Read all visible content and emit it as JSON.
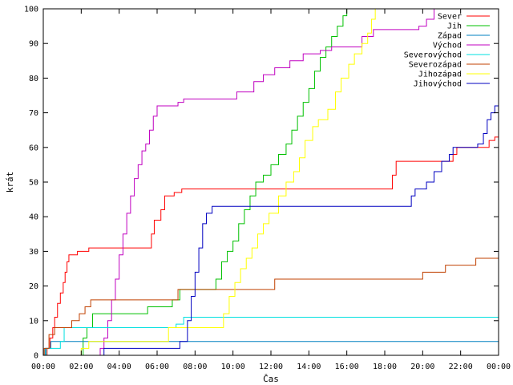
{
  "chart_data": {
    "type": "line",
    "xlabel": "Čas",
    "ylabel": "krát",
    "ylim": [
      0,
      100
    ],
    "xlim": [
      0,
      24
    ],
    "x_ticks": [
      {
        "x": 0,
        "label": "00:00"
      },
      {
        "x": 2,
        "label": "02:00"
      },
      {
        "x": 4,
        "label": "04:00"
      },
      {
        "x": 6,
        "label": "06:00"
      },
      {
        "x": 8,
        "label": "08:00"
      },
      {
        "x": 10,
        "label": "10:00"
      },
      {
        "x": 12,
        "label": "12:00"
      },
      {
        "x": 14,
        "label": "14:00"
      },
      {
        "x": 16,
        "label": "16:00"
      },
      {
        "x": 18,
        "label": "18:00"
      },
      {
        "x": 20,
        "label": "20:00"
      },
      {
        "x": 22,
        "label": "22:00"
      },
      {
        "x": 24,
        "label": "00:00"
      }
    ],
    "y_ticks": [
      0,
      10,
      20,
      30,
      40,
      50,
      60,
      70,
      80,
      90,
      100
    ],
    "grid": false,
    "legend_position": "top-right",
    "step": true,
    "series": [
      {
        "name": "Sever",
        "color": "#ff0000",
        "points": [
          [
            0,
            0
          ],
          [
            0.2,
            2
          ],
          [
            0.35,
            5
          ],
          [
            0.5,
            8
          ],
          [
            0.6,
            11
          ],
          [
            0.75,
            15
          ],
          [
            0.9,
            18
          ],
          [
            1.05,
            21
          ],
          [
            1.15,
            24
          ],
          [
            1.25,
            27
          ],
          [
            1.35,
            29
          ],
          [
            1.8,
            30
          ],
          [
            2.4,
            31
          ],
          [
            5.4,
            31
          ],
          [
            5.7,
            35
          ],
          [
            5.85,
            39
          ],
          [
            6.2,
            42
          ],
          [
            6.4,
            46
          ],
          [
            6.9,
            47
          ],
          [
            7.3,
            48
          ],
          [
            18.2,
            48
          ],
          [
            18.4,
            52
          ],
          [
            18.6,
            56
          ],
          [
            21.6,
            58
          ],
          [
            21.8,
            60
          ],
          [
            23.5,
            62
          ],
          [
            23.8,
            63
          ],
          [
            24,
            63
          ]
        ]
      },
      {
        "name": "Jih",
        "color": "#00c000",
        "points": [
          [
            0,
            0
          ],
          [
            1.9,
            0
          ],
          [
            2.1,
            5
          ],
          [
            2.3,
            8
          ],
          [
            2.6,
            12
          ],
          [
            4.5,
            12
          ],
          [
            5.5,
            14
          ],
          [
            6.8,
            16
          ],
          [
            7.2,
            19
          ],
          [
            8.9,
            19
          ],
          [
            9.1,
            22
          ],
          [
            9.4,
            27
          ],
          [
            9.7,
            30
          ],
          [
            10.0,
            33
          ],
          [
            10.3,
            38
          ],
          [
            10.6,
            42
          ],
          [
            10.9,
            46
          ],
          [
            11.2,
            50
          ],
          [
            11.6,
            52
          ],
          [
            12.0,
            55
          ],
          [
            12.4,
            58
          ],
          [
            12.8,
            61
          ],
          [
            13.1,
            65
          ],
          [
            13.4,
            69
          ],
          [
            13.7,
            73
          ],
          [
            14.0,
            77
          ],
          [
            14.3,
            82
          ],
          [
            14.6,
            86
          ],
          [
            14.9,
            89
          ],
          [
            15.2,
            92
          ],
          [
            15.5,
            95
          ],
          [
            15.8,
            98
          ],
          [
            16.0,
            100
          ],
          [
            24,
            100
          ]
        ]
      },
      {
        "name": "Západ",
        "color": "#0080c0",
        "points": [
          [
            0,
            0
          ],
          [
            0.1,
            2
          ],
          [
            0.4,
            4
          ],
          [
            7.6,
            4
          ],
          [
            24,
            4
          ]
        ]
      },
      {
        "name": "Východ",
        "color": "#c000c0",
        "points": [
          [
            0,
            0
          ],
          [
            2.8,
            0
          ],
          [
            3.0,
            2
          ],
          [
            3.2,
            5
          ],
          [
            3.4,
            10
          ],
          [
            3.6,
            16
          ],
          [
            3.8,
            22
          ],
          [
            4.0,
            29
          ],
          [
            4.2,
            35
          ],
          [
            4.4,
            41
          ],
          [
            4.6,
            46
          ],
          [
            4.8,
            51
          ],
          [
            5.0,
            55
          ],
          [
            5.2,
            59
          ],
          [
            5.4,
            61
          ],
          [
            5.6,
            65
          ],
          [
            5.8,
            69
          ],
          [
            6.0,
            72
          ],
          [
            7.1,
            73
          ],
          [
            7.4,
            74
          ],
          [
            9.7,
            74
          ],
          [
            10.2,
            76
          ],
          [
            11.1,
            79
          ],
          [
            11.6,
            81
          ],
          [
            12.2,
            83
          ],
          [
            13.0,
            85
          ],
          [
            13.7,
            87
          ],
          [
            14.6,
            88
          ],
          [
            15.2,
            89
          ],
          [
            16.8,
            92
          ],
          [
            17.4,
            94
          ],
          [
            19.8,
            95
          ],
          [
            20.2,
            97
          ],
          [
            20.6,
            100
          ],
          [
            24,
            100
          ]
        ]
      },
      {
        "name": "Severovýchod",
        "color": "#00e0e0",
        "points": [
          [
            0,
            0
          ],
          [
            0.15,
            2
          ],
          [
            0.9,
            4
          ],
          [
            1.1,
            8
          ],
          [
            6.7,
            8
          ],
          [
            7.0,
            9
          ],
          [
            7.4,
            11
          ],
          [
            24,
            11
          ]
        ]
      },
      {
        "name": "Severozápad",
        "color": "#c04000",
        "points": [
          [
            0,
            0
          ],
          [
            0.05,
            2
          ],
          [
            0.3,
            6
          ],
          [
            0.6,
            8
          ],
          [
            1.3,
            8
          ],
          [
            1.5,
            10
          ],
          [
            1.9,
            12
          ],
          [
            2.2,
            14
          ],
          [
            2.5,
            16
          ],
          [
            6.8,
            16
          ],
          [
            7.1,
            19
          ],
          [
            12.0,
            19
          ],
          [
            12.2,
            22
          ],
          [
            19.8,
            22
          ],
          [
            20.0,
            24
          ],
          [
            21.2,
            26
          ],
          [
            22.8,
            28
          ],
          [
            24,
            28
          ]
        ]
      },
      {
        "name": "Jihozápad",
        "color": "#ffff00",
        "points": [
          [
            0,
            0
          ],
          [
            1.8,
            0
          ],
          [
            2.0,
            2
          ],
          [
            2.4,
            4
          ],
          [
            6.2,
            4
          ],
          [
            6.6,
            8
          ],
          [
            9.3,
            8
          ],
          [
            9.5,
            12
          ],
          [
            9.8,
            17
          ],
          [
            10.1,
            21
          ],
          [
            10.4,
            25
          ],
          [
            10.7,
            28
          ],
          [
            11.0,
            31
          ],
          [
            11.3,
            35
          ],
          [
            11.6,
            38
          ],
          [
            11.9,
            41
          ],
          [
            12.4,
            46
          ],
          [
            12.8,
            50
          ],
          [
            13.2,
            53
          ],
          [
            13.5,
            57
          ],
          [
            13.8,
            62
          ],
          [
            14.2,
            66
          ],
          [
            14.5,
            68
          ],
          [
            15.0,
            71
          ],
          [
            15.4,
            76
          ],
          [
            15.7,
            80
          ],
          [
            16.1,
            84
          ],
          [
            16.4,
            87
          ],
          [
            16.8,
            90
          ],
          [
            17.1,
            93
          ],
          [
            17.3,
            97
          ],
          [
            17.5,
            100
          ],
          [
            24,
            100
          ]
        ]
      },
      {
        "name": "Jihovýchod",
        "color": "#0000c0",
        "points": [
          [
            0,
            0
          ],
          [
            3.1,
            0
          ],
          [
            3.2,
            2
          ],
          [
            6.7,
            2
          ],
          [
            7.2,
            4
          ],
          [
            7.6,
            10
          ],
          [
            7.8,
            17
          ],
          [
            8.0,
            24
          ],
          [
            8.2,
            31
          ],
          [
            8.4,
            38
          ],
          [
            8.6,
            41
          ],
          [
            8.9,
            43
          ],
          [
            19.2,
            43
          ],
          [
            19.4,
            46
          ],
          [
            19.6,
            48
          ],
          [
            20.2,
            50
          ],
          [
            20.6,
            53
          ],
          [
            21.0,
            56
          ],
          [
            21.4,
            58
          ],
          [
            21.6,
            60
          ],
          [
            22.9,
            61
          ],
          [
            23.2,
            64
          ],
          [
            23.4,
            68
          ],
          [
            23.6,
            70
          ],
          [
            23.8,
            72
          ],
          [
            24,
            73
          ]
        ]
      }
    ]
  }
}
